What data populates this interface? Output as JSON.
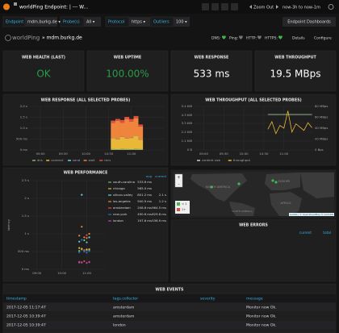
{
  "nav": {
    "title": "worldPing Endpoint: | --- W...",
    "zoom": "Zoom Out",
    "range": "now-3h to now-1m"
  },
  "variables": [
    {
      "label": "Endpoint",
      "value": "mdm.burkg.de ▾"
    },
    {
      "label": "Probe(s)",
      "value": "All ▾"
    },
    {
      "label": "Protocol",
      "value": "https ▾"
    },
    {
      "label": "Outliers",
      "value": "100 ▾"
    }
  ],
  "dashboards_button": "Endpoint Dashboards",
  "header": {
    "brand": "worldPing",
    "endpoint": "» mdm.burkg.de",
    "checks": [
      "DNS:",
      "Ping:",
      "HTTP:",
      "HTTPS:"
    ],
    "links": [
      "Details",
      "Configure"
    ]
  },
  "stats": [
    {
      "title": "WEB HEALTH (LAST)",
      "value": "OK"
    },
    {
      "title": "WEB UPTIME",
      "value": "100.00%"
    },
    {
      "title": "WEB RESPONSE",
      "value": "533 ms"
    },
    {
      "title": "WEB THROUGHPUT",
      "value": "19.5 MBps"
    }
  ],
  "chart_data": [
    {
      "type": "bar",
      "stacked": true,
      "grid": true,
      "title": "WEB RESPONSE (ALL SELECTED PROBES)",
      "x": [
        10.6,
        10.7,
        10.8,
        10.9,
        11.0,
        11.1,
        11.2
      ],
      "series": [
        {
          "name": "dns",
          "color": "#7eb26d",
          "values": [
            40,
            35,
            45,
            40,
            30,
            50,
            40
          ]
        },
        {
          "name": "connect",
          "color": "#eab839",
          "values": [
            500,
            450,
            550,
            480,
            520,
            600,
            430
          ]
        },
        {
          "name": "send",
          "color": "#6ed0e0",
          "values": [
            10,
            10,
            10,
            10,
            10,
            10,
            10
          ]
        },
        {
          "name": "wait",
          "color": "#ef843c",
          "values": [
            700,
            850,
            650,
            900,
            750,
            800,
            600
          ]
        },
        {
          "name": "recv",
          "color": "#e24d42",
          "values": [
            100,
            80,
            120,
            90,
            110,
            100,
            90
          ]
        }
      ],
      "xlim": [
        8.75,
        11.73
      ],
      "xticks": [
        {
          "value": 9,
          "label": "09:00"
        },
        {
          "value": 9.5,
          "label": "09:30"
        },
        {
          "value": 10,
          "label": "10:00"
        },
        {
          "value": 10.5,
          "label": "10:30"
        },
        {
          "value": 11,
          "label": "11:00"
        }
      ],
      "ylim": [
        0,
        2000
      ],
      "yticks": [
        {
          "value": 0,
          "label": "0 ms"
        },
        {
          "value": 500,
          "label": "500 ms"
        },
        {
          "value": 1000,
          "label": "1.0 s"
        },
        {
          "value": 1500,
          "label": "1.5 s"
        },
        {
          "value": 2000,
          "label": "2.0 s"
        }
      ]
    },
    {
      "type": "line",
      "grid": true,
      "title": "WEB THROUGHPUT (ALL SELECTED PROBES)",
      "x": [
        10.6,
        10.7,
        10.8,
        10.9,
        11.0,
        11.1,
        11.2,
        11.3,
        11.4,
        11.5,
        11.6,
        11.7
      ],
      "series": [
        {
          "name": "content size",
          "color": "#b7dbab",
          "values": [
            4.4,
            4.4,
            4.4,
            4.4,
            4.4,
            4.4,
            4.4,
            4.4,
            4.4,
            4.4,
            4.4,
            4.4
          ]
        },
        {
          "name": "throughput",
          "color": "#eab839",
          "axis": "y2",
          "values": [
            38,
            52,
            30,
            45,
            40,
            72,
            33,
            48,
            42,
            36,
            50,
            41
          ]
        }
      ],
      "xlim": [
        8.75,
        11.73
      ],
      "xticks": [
        {
          "value": 9,
          "label": "09:00"
        },
        {
          "value": 9.5,
          "label": "09:30"
        },
        {
          "value": 10,
          "label": "10:00"
        },
        {
          "value": 10.5,
          "label": "10:30"
        },
        {
          "value": 11,
          "label": "11:00"
        }
      ],
      "ylim": [
        0,
        5.4
      ],
      "yticks": [
        {
          "value": 0,
          "label": "0 B"
        },
        {
          "value": 1.1,
          "label": "1.1 KiB"
        },
        {
          "value": 2.2,
          "label": "2.2 KiB"
        },
        {
          "value": 3.3,
          "label": "3.3 KiB"
        },
        {
          "value": 4.3,
          "label": "4.3 KiB"
        },
        {
          "value": 5.4,
          "label": "5.4 KiB"
        }
      ],
      "y2lim": [
        0,
        80
      ],
      "y2ticks": [
        {
          "value": 0,
          "label": "0 Bps"
        },
        {
          "value": 20,
          "label": "20 MBps"
        },
        {
          "value": 40,
          "label": "40 MBps"
        },
        {
          "value": 60,
          "label": "60 MBps"
        },
        {
          "value": 80,
          "label": "80 MBps"
        }
      ]
    },
    {
      "type": "scatter",
      "grid": true,
      "title": "WEB PERFORMANCE",
      "ylabel": "latency",
      "legend_columns": [
        "avg",
        "current"
      ],
      "series": [
        {
          "name": "south-carolina",
          "color": "#7eb26d",
          "avg": "533.6 ms",
          "x": [
            10.7,
            10.8,
            10.9,
            11.0,
            11.1
          ],
          "values": [
            520,
            560,
            510,
            540,
            533
          ]
        },
        {
          "name": "chicago",
          "color": "#eab839",
          "avg": "565.0 ms",
          "x": [
            10.7,
            10.8,
            10.9,
            11.0,
            11.1
          ],
          "values": [
            600,
            580,
            540,
            560,
            565
          ]
        },
        {
          "name": "silicon-valley",
          "color": "#6ed0e0",
          "avg": "801.2 ms",
          "current": "2.1 s",
          "x": [
            10.7,
            10.8,
            10.9,
            11.0,
            11.1
          ],
          "values": [
            780,
            2100,
            820,
            760,
            900
          ]
        },
        {
          "name": "los-angeles",
          "color": "#ef843c",
          "avg": "940.9 ms",
          "current": "1.2 s",
          "x": [
            10.7,
            10.8,
            10.9,
            11.0,
            11.1
          ],
          "values": [
            950,
            1200,
            900,
            880,
            1000
          ]
        },
        {
          "name": "amsterdam",
          "color": "#e24d42",
          "avg": "208.6 ms",
          "current": "964.5 ms",
          "x": [
            10.7,
            10.8,
            10.9,
            11.0,
            11.1
          ],
          "values": [
            210,
            190,
            230,
            960,
            200
          ]
        },
        {
          "name": "new-york",
          "color": "#1f78c1",
          "avg": "490.6 ms",
          "current": "829.8 ms",
          "x": [
            10.7,
            10.8,
            10.9,
            11.0,
            11.1
          ],
          "values": [
            480,
            830,
            500,
            470,
            510
          ]
        },
        {
          "name": "london",
          "color": "#ba43a9",
          "avg": "197.6 ms",
          "current": "536.9 ms",
          "x": [
            10.7,
            10.8,
            10.9,
            11.0,
            11.1
          ],
          "values": [
            190,
            200,
            540,
            180,
            210
          ]
        }
      ],
      "xlim": [
        8.75,
        11.73
      ],
      "xticks": [
        {
          "value": 9,
          "label": "09:00"
        },
        {
          "value": 10,
          "label": "10:00"
        },
        {
          "value": 11,
          "label": "11:00"
        }
      ],
      "ylim": [
        0,
        2500
      ],
      "yticks": [
        {
          "value": 0,
          "label": "0 ms"
        },
        {
          "value": 500,
          "label": "500 ms"
        },
        {
          "value": 1000,
          "label": "1 s"
        },
        {
          "value": 1500,
          "label": "1.5 s"
        },
        {
          "value": 2000,
          "label": "2 s"
        },
        {
          "value": 2500,
          "label": "2.5 s"
        }
      ]
    }
  ],
  "map": {
    "zoom_in": "+",
    "zoom_out": "-",
    "regions": [
      "NORTH AMERICA",
      "EUROPE",
      "AFRICA",
      "SOUTH AMERICA"
    ],
    "legend": [
      "< 1",
      "1+"
    ],
    "attribution": "Leaflet | © OpenStreetMap © CartoDB"
  },
  "errors": {
    "title": "WEB ERRORS",
    "columns": [
      "current",
      "total"
    ]
  },
  "events": {
    "title": "WEB EVENTS",
    "columns": [
      "timestamp",
      "tags.collector",
      "severity",
      "message"
    ],
    "rows": [
      {
        "timestamp": "2017-12-05 11:17:47",
        "collector": "amsterdam",
        "message": "Monitor now Ok."
      },
      {
        "timestamp": "2017-12-05 10:39:47",
        "collector": "amsterdam",
        "message": "Monitor now Ok."
      },
      {
        "timestamp": "2017-12-05 10:39:47",
        "collector": "london",
        "message": "Monitor now Ok."
      }
    ]
  }
}
